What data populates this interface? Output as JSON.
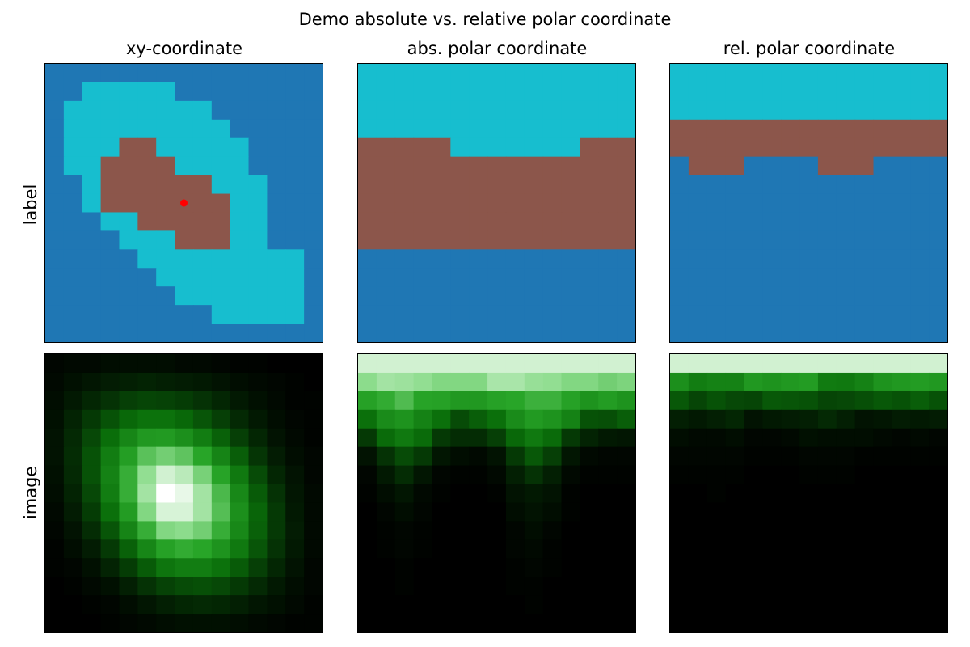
{
  "title": "Demo absolute vs. relative polar coordinate",
  "columns": [
    "xy-coordinate",
    "abs. polar coordinate",
    "rel. polar coordinate"
  ],
  "rows": [
    "label",
    "image"
  ],
  "colors": {
    "background_label": "#1f77b4",
    "ring_label": "#8c564b",
    "center_label": "#17becf",
    "marker": "#ff0000",
    "image_colormap": "black-green-white"
  },
  "chart_data": [
    {
      "type": "heatmap",
      "panel": "label / xy-coordinate",
      "legend": {
        "0": "background_label",
        "1": "ring_label",
        "2": "center_label"
      },
      "grid": [
        "000000000000000",
        "002222200000000",
        "022222222000000",
        "022222222200000",
        "022211222220000",
        "022111122220000",
        "002111111222000",
        "002111111122000",
        "000221111122000",
        "000022211122000",
        "000002222222220",
        "000000222222220",
        "000000022222220",
        "000000000222220",
        "000000000000000"
      ],
      "marker": {
        "row": 7,
        "col": 7
      }
    },
    {
      "type": "heatmap",
      "panel": "label / abs. polar coordinate",
      "legend": {
        "0": "background_label",
        "1": "ring_label",
        "2": "center_label"
      },
      "grid": [
        "222222222222222",
        "222222222222222",
        "222222222222222",
        "222222222222222",
        "111112222222111",
        "111111111111111",
        "111111111111111",
        "111111111111111",
        "111111111111111",
        "111111111111111",
        "000000000000000",
        "000000000000000",
        "000000000000000",
        "000000000000000",
        "000000000000000"
      ]
    },
    {
      "type": "heatmap",
      "panel": "label / rel. polar coordinate",
      "legend": {
        "0": "background_label",
        "1": "ring_label",
        "2": "center_label"
      },
      "grid": [
        "222222222222222",
        "222222222222222",
        "222222222222222",
        "111111111111111",
        "111111111111111",
        "011100001110000",
        "000000000000000",
        "000000000000000",
        "000000000000000",
        "000000000000000",
        "000000000000000",
        "000000000000000",
        "000000000000000",
        "000000000000000",
        "000000000000000"
      ]
    },
    {
      "type": "heatmap",
      "panel": "image / xy-coordinate",
      "values": [
        [
          0.02,
          0.03,
          0.03,
          0.04,
          0.04,
          0.04,
          0.04,
          0.03,
          0.03,
          0.02,
          0.01,
          0.01,
          0.0,
          0.0,
          0.0
        ],
        [
          0.03,
          0.05,
          0.07,
          0.09,
          0.1,
          0.11,
          0.1,
          0.09,
          0.08,
          0.06,
          0.04,
          0.03,
          0.02,
          0.01,
          0.0
        ],
        [
          0.04,
          0.08,
          0.12,
          0.16,
          0.2,
          0.22,
          0.21,
          0.19,
          0.16,
          0.12,
          0.08,
          0.05,
          0.03,
          0.01,
          0.01
        ],
        [
          0.05,
          0.11,
          0.18,
          0.26,
          0.33,
          0.37,
          0.37,
          0.33,
          0.27,
          0.2,
          0.13,
          0.08,
          0.04,
          0.02,
          0.01
        ],
        [
          0.06,
          0.13,
          0.23,
          0.35,
          0.46,
          0.54,
          0.55,
          0.5,
          0.42,
          0.31,
          0.2,
          0.12,
          0.06,
          0.03,
          0.01
        ],
        [
          0.06,
          0.14,
          0.26,
          0.42,
          0.57,
          0.7,
          0.75,
          0.71,
          0.6,
          0.45,
          0.3,
          0.17,
          0.09,
          0.04,
          0.02
        ],
        [
          0.05,
          0.13,
          0.26,
          0.44,
          0.63,
          0.81,
          0.92,
          0.88,
          0.76,
          0.59,
          0.4,
          0.24,
          0.12,
          0.06,
          0.02
        ],
        [
          0.04,
          0.11,
          0.23,
          0.42,
          0.63,
          0.84,
          1.0,
          0.96,
          0.84,
          0.67,
          0.47,
          0.29,
          0.16,
          0.07,
          0.03
        ],
        [
          0.03,
          0.09,
          0.19,
          0.36,
          0.56,
          0.78,
          0.93,
          0.93,
          0.84,
          0.69,
          0.5,
          0.32,
          0.18,
          0.08,
          0.03
        ],
        [
          0.02,
          0.06,
          0.14,
          0.27,
          0.45,
          0.63,
          0.78,
          0.8,
          0.75,
          0.63,
          0.47,
          0.31,
          0.18,
          0.09,
          0.03
        ],
        [
          0.01,
          0.04,
          0.09,
          0.18,
          0.31,
          0.46,
          0.58,
          0.62,
          0.6,
          0.52,
          0.4,
          0.27,
          0.16,
          0.08,
          0.03
        ],
        [
          0.01,
          0.02,
          0.05,
          0.11,
          0.19,
          0.29,
          0.38,
          0.42,
          0.42,
          0.37,
          0.29,
          0.2,
          0.12,
          0.06,
          0.02
        ],
        [
          0.0,
          0.01,
          0.03,
          0.05,
          0.1,
          0.16,
          0.21,
          0.24,
          0.25,
          0.23,
          0.18,
          0.13,
          0.08,
          0.04,
          0.02
        ],
        [
          0.0,
          0.0,
          0.01,
          0.02,
          0.04,
          0.07,
          0.1,
          0.12,
          0.13,
          0.12,
          0.1,
          0.07,
          0.05,
          0.03,
          0.01
        ],
        [
          0.0,
          0.0,
          0.0,
          0.01,
          0.02,
          0.03,
          0.04,
          0.05,
          0.05,
          0.05,
          0.04,
          0.03,
          0.02,
          0.01,
          0.01
        ]
      ]
    },
    {
      "type": "heatmap",
      "panel": "image / abs. polar coordinate",
      "values": [
        [
          0.92,
          0.92,
          0.92,
          0.92,
          0.92,
          0.92,
          0.92,
          0.92,
          0.92,
          0.92,
          0.92,
          0.92,
          0.92,
          0.92,
          0.92
        ],
        [
          0.8,
          0.84,
          0.83,
          0.81,
          0.78,
          0.78,
          0.78,
          0.85,
          0.85,
          0.82,
          0.81,
          0.78,
          0.78,
          0.75,
          0.77
        ],
        [
          0.58,
          0.62,
          0.68,
          0.59,
          0.58,
          0.54,
          0.54,
          0.58,
          0.6,
          0.64,
          0.64,
          0.58,
          0.52,
          0.56,
          0.52
        ],
        [
          0.36,
          0.48,
          0.52,
          0.44,
          0.36,
          0.24,
          0.3,
          0.36,
          0.48,
          0.55,
          0.52,
          0.44,
          0.26,
          0.25,
          0.3
        ],
        [
          0.18,
          0.34,
          0.4,
          0.34,
          0.18,
          0.14,
          0.14,
          0.2,
          0.33,
          0.4,
          0.34,
          0.18,
          0.11,
          0.08,
          0.07
        ],
        [
          0.06,
          0.16,
          0.24,
          0.18,
          0.07,
          0.04,
          0.03,
          0.06,
          0.18,
          0.28,
          0.2,
          0.07,
          0.03,
          0.02,
          0.02
        ],
        [
          0.02,
          0.08,
          0.14,
          0.07,
          0.02,
          0.01,
          0.01,
          0.03,
          0.1,
          0.16,
          0.1,
          0.03,
          0.01,
          0.01,
          0.01
        ],
        [
          0.01,
          0.04,
          0.07,
          0.03,
          0.01,
          0.0,
          0.0,
          0.01,
          0.06,
          0.08,
          0.06,
          0.01,
          0.0,
          0.0,
          0.0
        ],
        [
          0.0,
          0.02,
          0.04,
          0.02,
          0.0,
          0.0,
          0.0,
          0.0,
          0.04,
          0.06,
          0.04,
          0.01,
          0.0,
          0.0,
          0.0
        ],
        [
          0.0,
          0.01,
          0.02,
          0.01,
          0.0,
          0.0,
          0.0,
          0.0,
          0.02,
          0.04,
          0.02,
          0.0,
          0.0,
          0.0,
          0.0
        ],
        [
          0.0,
          0.01,
          0.02,
          0.01,
          0.0,
          0.0,
          0.0,
          0.0,
          0.02,
          0.03,
          0.01,
          0.0,
          0.0,
          0.0,
          0.0
        ],
        [
          0.0,
          0.0,
          0.01,
          0.0,
          0.0,
          0.0,
          0.0,
          0.0,
          0.01,
          0.02,
          0.01,
          0.0,
          0.0,
          0.0,
          0.0
        ],
        [
          0.0,
          0.0,
          0.01,
          0.0,
          0.0,
          0.0,
          0.0,
          0.0,
          0.01,
          0.01,
          0.0,
          0.0,
          0.0,
          0.0,
          0.0
        ],
        [
          0.0,
          0.0,
          0.0,
          0.0,
          0.0,
          0.0,
          0.0,
          0.0,
          0.0,
          0.01,
          0.0,
          0.0,
          0.0,
          0.0,
          0.0
        ],
        [
          0.0,
          0.0,
          0.0,
          0.0,
          0.0,
          0.0,
          0.0,
          0.0,
          0.0,
          0.0,
          0.0,
          0.0,
          0.0,
          0.0,
          0.0
        ]
      ]
    },
    {
      "type": "heatmap",
      "panel": "image / rel. polar coordinate",
      "values": [
        [
          0.92,
          0.92,
          0.92,
          0.92,
          0.92,
          0.92,
          0.92,
          0.92,
          0.92,
          0.92,
          0.92,
          0.92,
          0.92,
          0.92,
          0.92
        ],
        [
          0.5,
          0.42,
          0.44,
          0.44,
          0.54,
          0.52,
          0.54,
          0.56,
          0.41,
          0.4,
          0.44,
          0.52,
          0.54,
          0.56,
          0.54
        ],
        [
          0.28,
          0.22,
          0.26,
          0.23,
          0.22,
          0.28,
          0.27,
          0.26,
          0.22,
          0.23,
          0.25,
          0.28,
          0.26,
          0.3,
          0.26
        ],
        [
          0.1,
          0.08,
          0.1,
          0.12,
          0.06,
          0.08,
          0.09,
          0.1,
          0.13,
          0.1,
          0.06,
          0.07,
          0.09,
          0.08,
          0.09
        ],
        [
          0.04,
          0.03,
          0.03,
          0.04,
          0.02,
          0.02,
          0.03,
          0.05,
          0.04,
          0.04,
          0.04,
          0.03,
          0.02,
          0.03,
          0.02
        ],
        [
          0.02,
          0.02,
          0.02,
          0.02,
          0.01,
          0.01,
          0.01,
          0.02,
          0.02,
          0.02,
          0.01,
          0.01,
          0.01,
          0.01,
          0.01
        ],
        [
          0.01,
          0.01,
          0.01,
          0.01,
          0.0,
          0.0,
          0.0,
          0.01,
          0.01,
          0.01,
          0.0,
          0.0,
          0.0,
          0.0,
          0.0
        ],
        [
          0.0,
          0.0,
          0.01,
          0.0,
          0.0,
          0.0,
          0.0,
          0.0,
          0.0,
          0.0,
          0.0,
          0.0,
          0.0,
          0.0,
          0.0
        ],
        [
          0.0,
          0.0,
          0.0,
          0.0,
          0.0,
          0.0,
          0.0,
          0.0,
          0.0,
          0.0,
          0.0,
          0.0,
          0.0,
          0.0,
          0.0
        ],
        [
          0.0,
          0.0,
          0.0,
          0.0,
          0.0,
          0.0,
          0.0,
          0.0,
          0.0,
          0.0,
          0.0,
          0.0,
          0.0,
          0.0,
          0.0
        ],
        [
          0.0,
          0.0,
          0.0,
          0.0,
          0.0,
          0.0,
          0.0,
          0.0,
          0.0,
          0.0,
          0.0,
          0.0,
          0.0,
          0.0,
          0.0
        ],
        [
          0.0,
          0.0,
          0.0,
          0.0,
          0.0,
          0.0,
          0.0,
          0.0,
          0.0,
          0.0,
          0.0,
          0.0,
          0.0,
          0.0,
          0.0
        ],
        [
          0.0,
          0.0,
          0.0,
          0.0,
          0.0,
          0.0,
          0.0,
          0.0,
          0.0,
          0.0,
          0.0,
          0.0,
          0.0,
          0.0,
          0.0
        ],
        [
          0.0,
          0.0,
          0.0,
          0.0,
          0.0,
          0.0,
          0.0,
          0.0,
          0.0,
          0.0,
          0.0,
          0.0,
          0.0,
          0.0,
          0.0
        ],
        [
          0.0,
          0.0,
          0.0,
          0.0,
          0.0,
          0.0,
          0.0,
          0.0,
          0.0,
          0.0,
          0.0,
          0.0,
          0.0,
          0.0,
          0.0
        ]
      ]
    }
  ]
}
